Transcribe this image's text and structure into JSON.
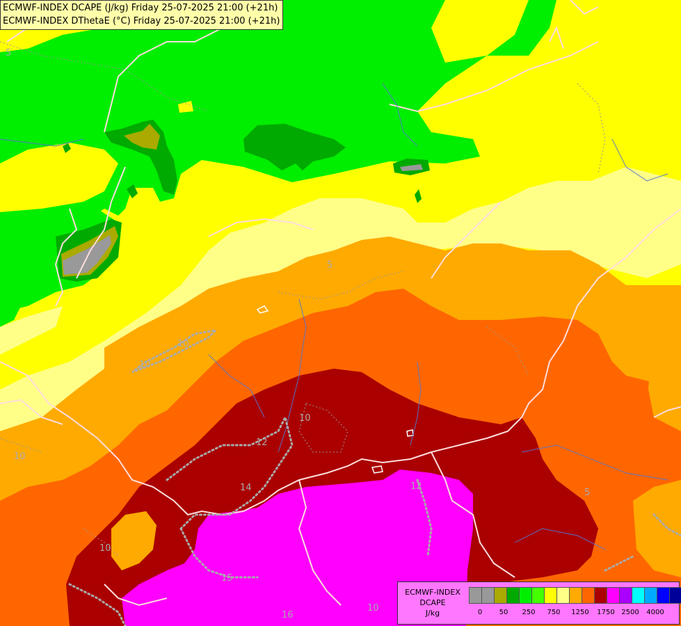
{
  "header": {
    "line1": "ECMWF-INDEX DCAPE (J/kg) Friday 25-07-2025 21:00 (+21h)",
    "line2": "ECMWF-INDEX DThetaE (°C) Friday 25-07-2025 21:00 (+21h)"
  },
  "legend": {
    "title_line1": "ECMWF-INDEX",
    "title_line2": "DCAPE",
    "title_line3": "J/kg",
    "colors": [
      "#999999",
      "#999999",
      "#aaaa00",
      "#00aa00",
      "#00ee00",
      "#44ff00",
      "#ffff00",
      "#ffff88",
      "#ffaa00",
      "#ff6600",
      "#aa0000",
      "#ff00ff",
      "#aa00ff",
      "#00ffff",
      "#00aaff",
      "#0000ff",
      "#000099"
    ],
    "tick_labels": [
      "0",
      "50",
      "250",
      "750",
      "1250",
      "1750",
      "2500",
      "4000"
    ]
  },
  "contour_labels": [
    "5",
    "5",
    "10",
    "10",
    "10",
    "10",
    "12",
    "12",
    "14",
    "15",
    "16",
    "10",
    "5",
    "10"
  ]
}
